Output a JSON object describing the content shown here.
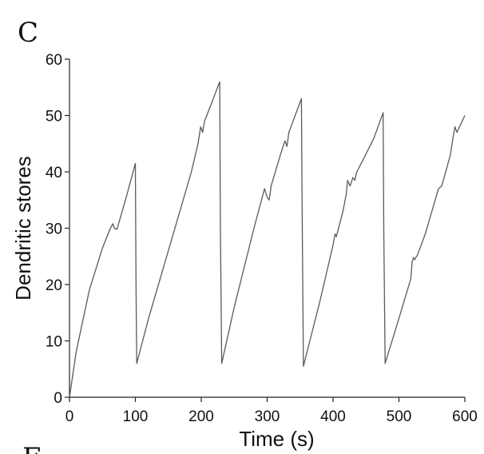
{
  "panel": {
    "letter": "C",
    "next_letter": "E"
  },
  "chart_data": {
    "type": "line",
    "xlabel": "Time (s)",
    "ylabel": "Dendritic stores",
    "xlim": [
      0,
      600
    ],
    "ylim": [
      0,
      60
    ],
    "xticks": [
      0,
      100,
      200,
      300,
      400,
      500,
      600
    ],
    "yticks": [
      0,
      10,
      20,
      30,
      40,
      50,
      60
    ],
    "grid": false,
    "series": [
      {
        "color": "#5a5a5a",
        "x": [
          0,
          10,
          30,
          50,
          62,
          66,
          68,
          72,
          75,
          85,
          100,
          101,
          102,
          120,
          150,
          185,
          195,
          199,
          202,
          205,
          215,
          228,
          229,
          231,
          250,
          280,
          296,
          300,
          303,
          306,
          320,
          327,
          330,
          333,
          352,
          353,
          355,
          380,
          400,
          403,
          405,
          415,
          420,
          422,
          426,
          430,
          433,
          436,
          445,
          462,
          476,
          477,
          479,
          500,
          518,
          520,
          522,
          524,
          526,
          528,
          540,
          555,
          560,
          565,
          578,
          582,
          585,
          588,
          600
        ],
        "y": [
          0,
          8,
          19,
          26.5,
          30,
          30.8,
          30,
          29.8,
          31,
          35,
          41.5,
          20,
          6,
          14,
          26,
          40,
          45,
          48,
          47,
          49,
          52,
          56,
          31,
          6,
          16,
          30,
          37,
          35.5,
          35,
          37.5,
          43,
          45.5,
          44.5,
          47,
          53,
          35,
          5.5,
          17,
          27,
          29,
          28.5,
          33,
          36,
          38.5,
          37.5,
          39,
          38.5,
          40,
          42,
          46,
          50.5,
          30,
          6,
          14,
          21,
          24,
          24.8,
          24.4,
          24.9,
          25.2,
          29,
          35,
          37,
          37.5,
          43,
          46,
          48,
          47,
          50
        ]
      }
    ]
  }
}
